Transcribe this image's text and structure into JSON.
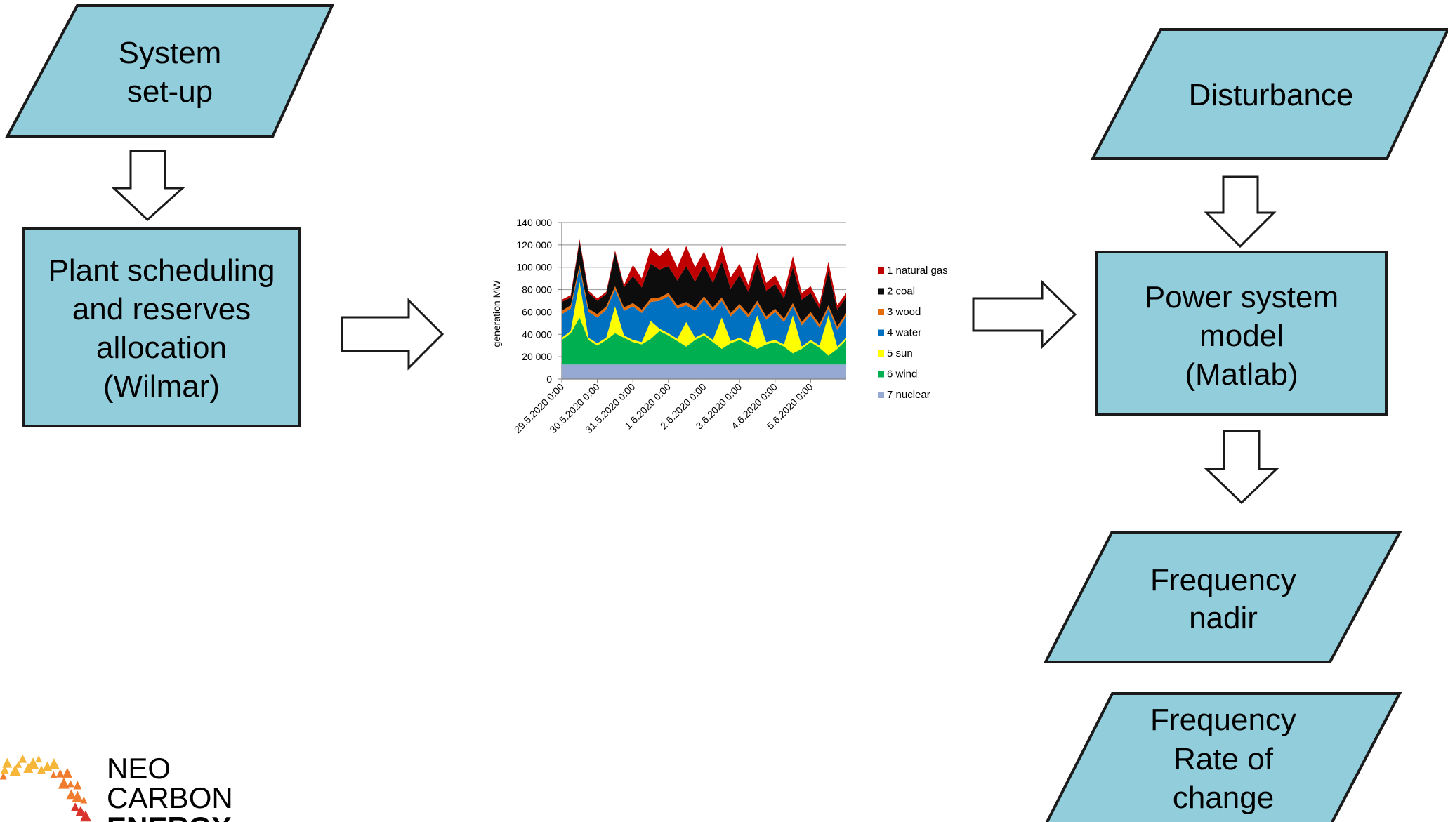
{
  "colors": {
    "box_fill": "#92cddc",
    "box_stroke": "#1a1a1a",
    "arrow_fill": "#ffffff"
  },
  "system_setup": {
    "lines": [
      "System",
      "set-up"
    ]
  },
  "plant_scheduling": {
    "lines": [
      "Plant scheduling",
      "and reserves",
      "allocation",
      "(Wilmar)"
    ]
  },
  "disturbance": {
    "lines": [
      "Disturbance"
    ]
  },
  "power_system_model": {
    "lines": [
      "Power system",
      "model",
      "(Matlab)"
    ]
  },
  "frequency_nadir": {
    "lines": [
      "Frequency",
      "nadir"
    ]
  },
  "frequency_rate": {
    "lines": [
      "Frequency",
      "Rate of",
      "change"
    ]
  },
  "logo": {
    "lines": [
      "NEO",
      "CARBON",
      "ENERGY"
    ],
    "colors": [
      "#f6b63a",
      "#ef7d2d",
      "#d9342b"
    ]
  },
  "chart_data": {
    "type": "area",
    "stacked": true,
    "ylabel": "generation MW",
    "ylim": [
      0,
      140000
    ],
    "yticks": [
      0,
      20000,
      40000,
      60000,
      80000,
      100000,
      120000,
      140000
    ],
    "ytick_labels": [
      "0",
      "20 000",
      "40 000",
      "60 000",
      "80 000",
      "100 000",
      "120 000",
      "140 000"
    ],
    "grid": true,
    "legend_position": "right",
    "xtick_labels": [
      "29.5.2020 0:00",
      "30.5.2020 0:00",
      "31.5.2020 0:00",
      "1.6.2020 0:00",
      "2.6.2020 0:00",
      "3.6.2020 0:00",
      "4.6.2020 0:00",
      "5.6.2020 0:00"
    ],
    "x_hours": [
      0,
      6,
      12,
      18,
      24,
      30,
      36,
      42,
      48,
      54,
      60,
      66,
      72,
      78,
      84,
      90,
      96,
      102,
      108,
      114,
      120,
      126,
      132,
      138,
      144,
      150,
      156,
      162,
      168,
      174,
      180,
      186,
      192
    ],
    "series": [
      {
        "name": "7 nuclear",
        "color": "#95a9d3",
        "values": [
          13000,
          13000,
          13000,
          13000,
          13000,
          13000,
          13000,
          13000,
          13000,
          13000,
          13000,
          13000,
          13000,
          13000,
          13000,
          13000,
          13000,
          13000,
          13000,
          13000,
          13000,
          13000,
          13000,
          13000,
          13000,
          13000,
          13000,
          13000,
          13000,
          13000,
          13000,
          13000,
          13000
        ]
      },
      {
        "name": "6 wind",
        "color": "#00b050",
        "values": [
          22000,
          28000,
          42000,
          22000,
          17000,
          22000,
          28000,
          24000,
          20000,
          18000,
          23000,
          30000,
          26000,
          21000,
          16000,
          22000,
          26000,
          20000,
          14000,
          19000,
          22000,
          18000,
          14000,
          18000,
          20000,
          16000,
          10000,
          14000,
          20000,
          15000,
          8000,
          14000,
          22000
        ]
      },
      {
        "name": "5 sun",
        "color": "#ffff00",
        "values": [
          2000,
          2000,
          32000,
          2000,
          2000,
          2000,
          24000,
          2000,
          2000,
          2000,
          16000,
          2000,
          2000,
          2000,
          22000,
          2000,
          2000,
          2000,
          28000,
          2000,
          2000,
          2000,
          30000,
          2000,
          2000,
          2000,
          34000,
          2000,
          2000,
          2000,
          36000,
          2000,
          2000
        ]
      },
      {
        "name": "4 water",
        "color": "#0070c0",
        "values": [
          21000,
          20000,
          12000,
          23000,
          23000,
          25000,
          15000,
          22000,
          30000,
          26000,
          17000,
          25000,
          33000,
          27000,
          15000,
          24000,
          30000,
          26000,
          15000,
          22000,
          27000,
          22000,
          10000,
          20000,
          25000,
          20000,
          8000,
          19000,
          22000,
          16000,
          6000,
          15000,
          19000
        ]
      },
      {
        "name": "3 wood",
        "color": "#e46c0a",
        "values": [
          3000,
          3000,
          3000,
          3000,
          3000,
          3000,
          3000,
          3000,
          3000,
          3000,
          3000,
          3000,
          3000,
          3000,
          3000,
          3000,
          3000,
          3000,
          3000,
          3000,
          3000,
          3000,
          3000,
          3000,
          3000,
          3000,
          3000,
          3000,
          3000,
          3000,
          3000,
          3000,
          3000
        ]
      },
      {
        "name": "2 coal",
        "color": "#0d0d0d",
        "values": [
          8000,
          7000,
          21000,
          14000,
          12000,
          11000,
          30000,
          18000,
          24000,
          20000,
          31000,
          25000,
          24000,
          22000,
          32000,
          23000,
          28000,
          22000,
          32000,
          22000,
          26000,
          20000,
          33000,
          23000,
          22000,
          18000,
          32000,
          20000,
          17000,
          14000,
          31000,
          15000,
          14000
        ]
      },
      {
        "name": "1 natural gas",
        "color": "#c00000",
        "values": [
          2000,
          2000,
          2000,
          2000,
          2000,
          2000,
          2000,
          2000,
          10000,
          8000,
          14000,
          12000,
          16000,
          12000,
          18000,
          13000,
          12000,
          9000,
          14000,
          10000,
          10000,
          6000,
          10000,
          7000,
          8000,
          5000,
          10000,
          6000,
          6000,
          4000,
          8000,
          4000,
          4000
        ]
      }
    ]
  }
}
